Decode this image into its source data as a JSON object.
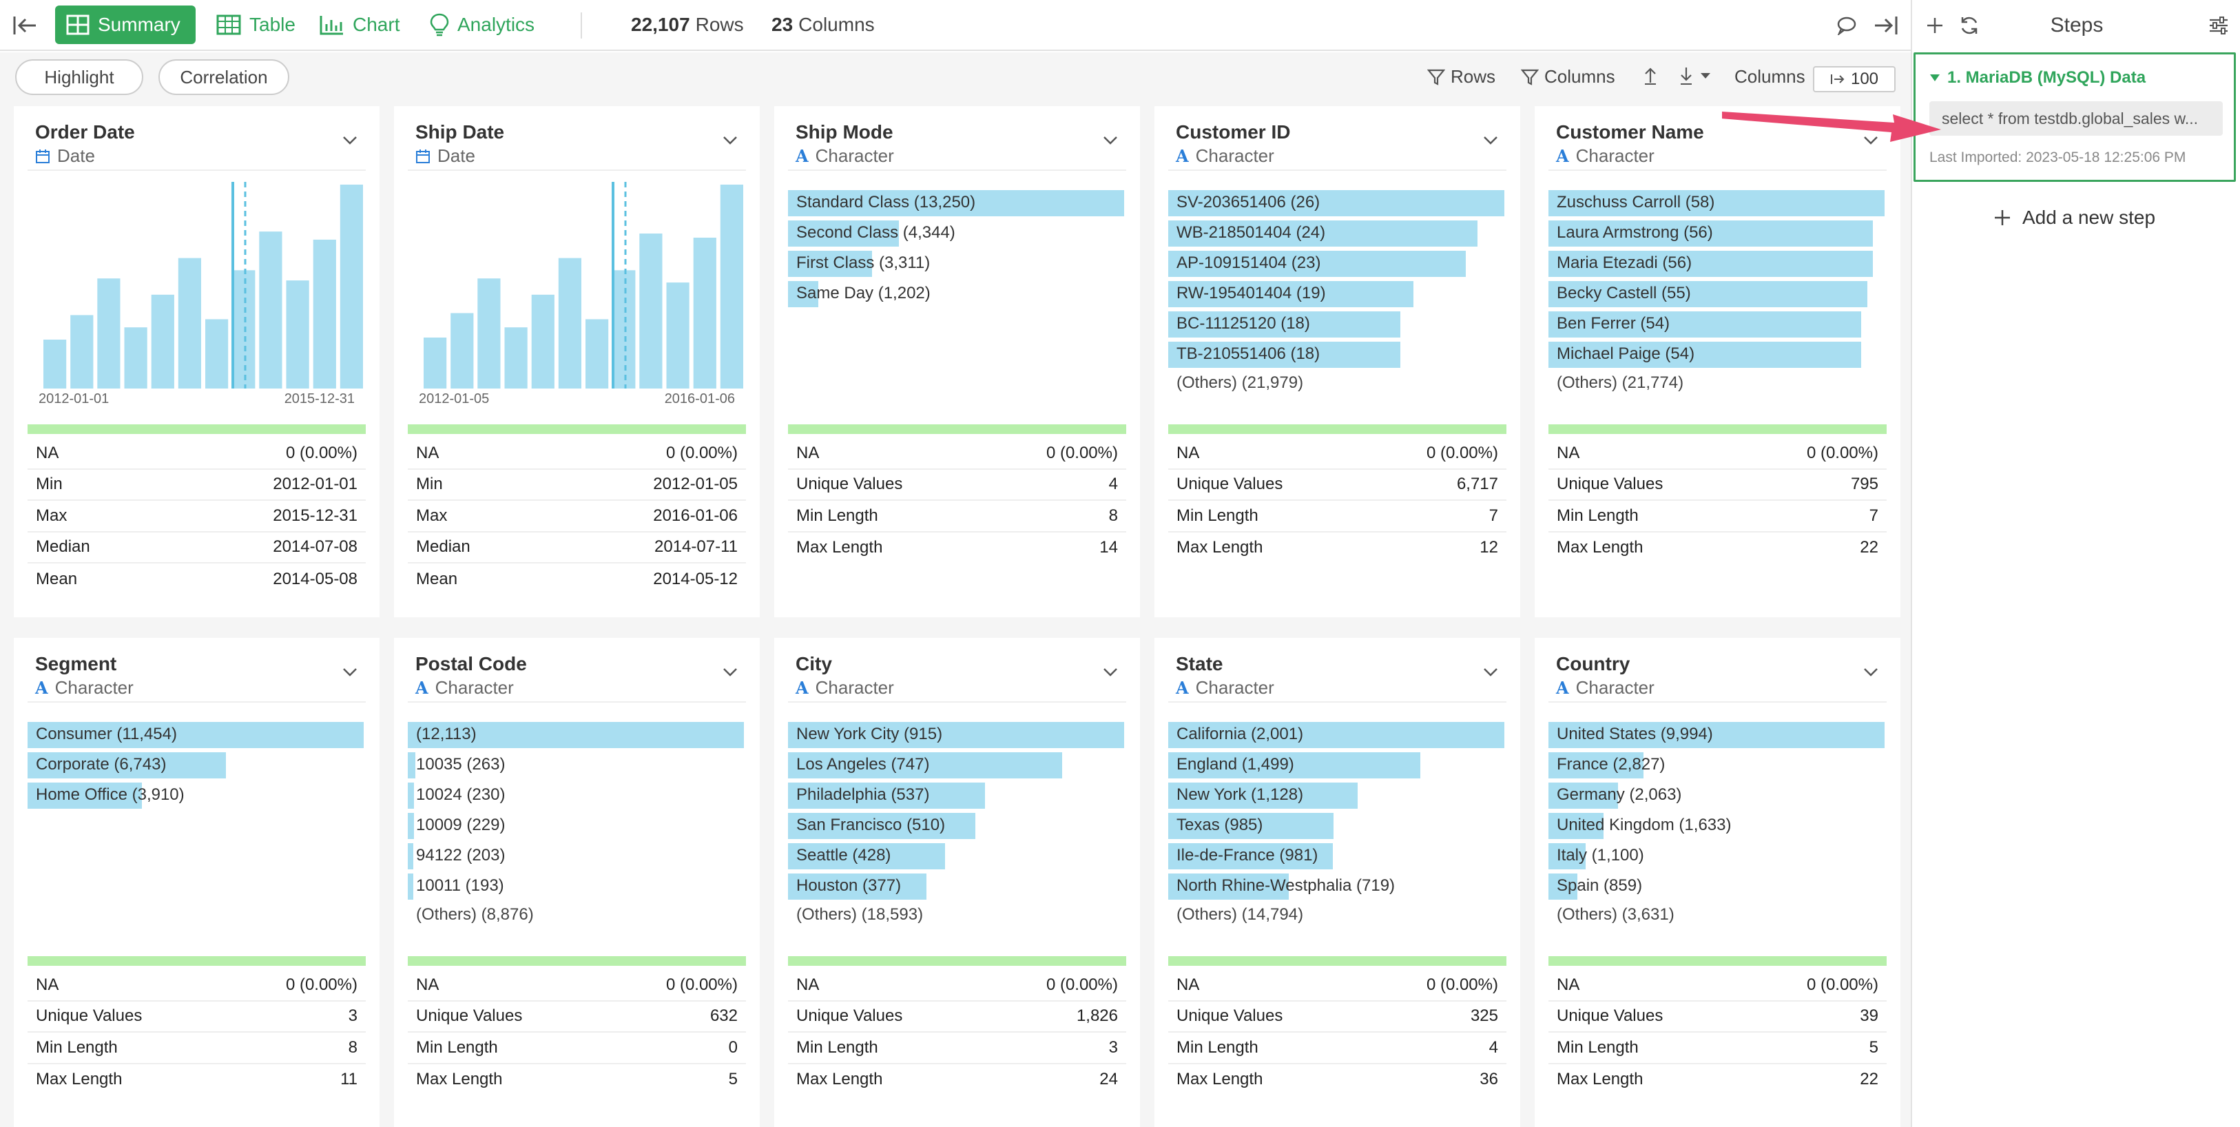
{
  "header": {
    "tabs": [
      {
        "label": "Summary",
        "active": true
      },
      {
        "label": "Table",
        "active": false
      },
      {
        "label": "Chart",
        "active": false
      },
      {
        "label": "Analytics",
        "active": false
      }
    ],
    "rows_count": "22,107",
    "rows_label": "Rows",
    "columns_count": "23",
    "columns_label": "Columns"
  },
  "toolbar": {
    "highlight": "Highlight",
    "correlation": "Correlation",
    "rows_filter": "Rows",
    "columns_filter": "Columns",
    "columns_label": "Columns",
    "columns_value": "100"
  },
  "colors": {
    "accent": "#34a85a",
    "bar": "#a9def1",
    "histogram": "#a9def1",
    "na_bar": "#b7efaa",
    "step_border": "#3aa55d",
    "arrow": "#e8476d"
  },
  "columns": [
    {
      "title": "Order Date",
      "type": "Date",
      "kind": "date",
      "hist": [
        24,
        36,
        54,
        30,
        46,
        64,
        34,
        58,
        77,
        53,
        73,
        100
      ],
      "axis_start": "2012-01-01",
      "axis_end": "2015-12-31",
      "stats": [
        {
          "label": "NA",
          "value": "0 (0.00%)"
        },
        {
          "label": "Min",
          "value": "2012-01-01"
        },
        {
          "label": "Max",
          "value": "2015-12-31"
        },
        {
          "label": "Median",
          "value": "2014-07-08"
        },
        {
          "label": "Mean",
          "value": "2014-05-08"
        }
      ]
    },
    {
      "title": "Ship Date",
      "type": "Date",
      "kind": "date",
      "hist": [
        25,
        37,
        54,
        30,
        46,
        64,
        34,
        58,
        76,
        52,
        74,
        100
      ],
      "axis_start": "2012-01-05",
      "axis_end": "2016-01-06",
      "stats": [
        {
          "label": "NA",
          "value": "0 (0.00%)"
        },
        {
          "label": "Min",
          "value": "2012-01-05"
        },
        {
          "label": "Max",
          "value": "2016-01-06"
        },
        {
          "label": "Median",
          "value": "2014-07-11"
        },
        {
          "label": "Mean",
          "value": "2014-05-12"
        }
      ]
    },
    {
      "title": "Ship Mode",
      "type": "Character",
      "kind": "char",
      "bars": [
        {
          "label": "Standard Class (13,250)",
          "frac": 1.0
        },
        {
          "label": "Second Class (4,344)",
          "frac": 0.33
        },
        {
          "label": "First Class (3,311)",
          "frac": 0.25
        },
        {
          "label": "Same Day (1,202)",
          "frac": 0.09
        }
      ],
      "others": "",
      "stats": [
        {
          "label": "NA",
          "value": "0 (0.00%)"
        },
        {
          "label": "Unique Values",
          "value": "4"
        },
        {
          "label": "Min Length",
          "value": "8"
        },
        {
          "label": "Max Length",
          "value": "14"
        }
      ]
    },
    {
      "title": "Customer ID",
      "type": "Character",
      "kind": "char",
      "bars": [
        {
          "label": "SV-203651406 (26)",
          "frac": 1.0
        },
        {
          "label": "WB-218501404 (24)",
          "frac": 0.92
        },
        {
          "label": "AP-109151404 (23)",
          "frac": 0.885
        },
        {
          "label": "RW-195401404 (19)",
          "frac": 0.73
        },
        {
          "label": "BC-11125120 (18)",
          "frac": 0.69
        },
        {
          "label": "TB-210551406 (18)",
          "frac": 0.69
        }
      ],
      "others": "(Others) (21,979)",
      "stats": [
        {
          "label": "NA",
          "value": "0 (0.00%)"
        },
        {
          "label": "Unique Values",
          "value": "6,717"
        },
        {
          "label": "Min Length",
          "value": "7"
        },
        {
          "label": "Max Length",
          "value": "12"
        }
      ]
    },
    {
      "title": "Customer Name",
      "type": "Character",
      "kind": "char",
      "bars": [
        {
          "label": "Zuschuss Carroll (58)",
          "frac": 1.0
        },
        {
          "label": "Laura Armstrong (56)",
          "frac": 0.965
        },
        {
          "label": "Maria Etezadi (56)",
          "frac": 0.965
        },
        {
          "label": "Becky Castell (55)",
          "frac": 0.948
        },
        {
          "label": "Ben Ferrer (54)",
          "frac": 0.93
        },
        {
          "label": "Michael Paige (54)",
          "frac": 0.93
        }
      ],
      "others": "(Others) (21,774)",
      "stats": [
        {
          "label": "NA",
          "value": "0 (0.00%)"
        },
        {
          "label": "Unique Values",
          "value": "795"
        },
        {
          "label": "Min Length",
          "value": "7"
        },
        {
          "label": "Max Length",
          "value": "22"
        }
      ]
    },
    {
      "title": "Segment",
      "type": "Character",
      "kind": "char",
      "bars": [
        {
          "label": "Consumer (11,454)",
          "frac": 1.0
        },
        {
          "label": "Corporate (6,743)",
          "frac": 0.59
        },
        {
          "label": "Home Office (3,910)",
          "frac": 0.34
        }
      ],
      "others": "",
      "stats": [
        {
          "label": "NA",
          "value": "0 (0.00%)"
        },
        {
          "label": "Unique Values",
          "value": "3"
        },
        {
          "label": "Min Length",
          "value": "8"
        },
        {
          "label": "Max Length",
          "value": "11"
        }
      ]
    },
    {
      "title": "Postal Code",
      "type": "Character",
      "kind": "char",
      "bars": [
        {
          "label": "(12,113)",
          "frac": 1.0
        },
        {
          "label": "10035 (263)",
          "frac": 0.022
        },
        {
          "label": "10024 (230)",
          "frac": 0.019
        },
        {
          "label": "10009 (229)",
          "frac": 0.019
        },
        {
          "label": "94122 (203)",
          "frac": 0.017
        },
        {
          "label": "10011 (193)",
          "frac": 0.016
        }
      ],
      "others": "(Others) (8,876)",
      "stats": [
        {
          "label": "NA",
          "value": "0 (0.00%)"
        },
        {
          "label": "Unique Values",
          "value": "632"
        },
        {
          "label": "Min Length",
          "value": "0"
        },
        {
          "label": "Max Length",
          "value": "5"
        }
      ]
    },
    {
      "title": "City",
      "type": "Character",
      "kind": "char",
      "bars": [
        {
          "label": "New York City (915)",
          "frac": 1.0
        },
        {
          "label": "Los Angeles (747)",
          "frac": 0.816
        },
        {
          "label": "Philadelphia (537)",
          "frac": 0.587
        },
        {
          "label": "San Francisco (510)",
          "frac": 0.557
        },
        {
          "label": "Seattle (428)",
          "frac": 0.468
        },
        {
          "label": "Houston (377)",
          "frac": 0.412
        }
      ],
      "others": "(Others) (18,593)",
      "stats": [
        {
          "label": "NA",
          "value": "0 (0.00%)"
        },
        {
          "label": "Unique Values",
          "value": "1,826"
        },
        {
          "label": "Min Length",
          "value": "3"
        },
        {
          "label": "Max Length",
          "value": "24"
        }
      ]
    },
    {
      "title": "State",
      "type": "Character",
      "kind": "char",
      "bars": [
        {
          "label": "California (2,001)",
          "frac": 1.0
        },
        {
          "label": "England (1,499)",
          "frac": 0.749
        },
        {
          "label": "New York (1,128)",
          "frac": 0.564
        },
        {
          "label": "Texas (985)",
          "frac": 0.492
        },
        {
          "label": "Ile-de-France (981)",
          "frac": 0.49
        },
        {
          "label": "North Rhine-Westphalia (719)",
          "frac": 0.359
        }
      ],
      "others": "(Others) (14,794)",
      "stats": [
        {
          "label": "NA",
          "value": "0 (0.00%)"
        },
        {
          "label": "Unique Values",
          "value": "325"
        },
        {
          "label": "Min Length",
          "value": "4"
        },
        {
          "label": "Max Length",
          "value": "36"
        }
      ]
    },
    {
      "title": "Country",
      "type": "Character",
      "kind": "char",
      "bars": [
        {
          "label": "United States (9,994)",
          "frac": 1.0
        },
        {
          "label": "France (2,827)",
          "frac": 0.283
        },
        {
          "label": "Germany (2,063)",
          "frac": 0.206
        },
        {
          "label": "United Kingdom (1,633)",
          "frac": 0.163
        },
        {
          "label": "Italy (1,100)",
          "frac": 0.11
        },
        {
          "label": "Spain (859)",
          "frac": 0.086
        }
      ],
      "others": "(Others) (3,631)",
      "stats": [
        {
          "label": "NA",
          "value": "0 (0.00%)"
        },
        {
          "label": "Unique Values",
          "value": "39"
        },
        {
          "label": "Min Length",
          "value": "5"
        },
        {
          "label": "Max Length",
          "value": "22"
        }
      ]
    }
  ],
  "steps": {
    "title": "Steps",
    "step_name": "1. MariaDB (MySQL) Data",
    "query": "select * from testdb.global_sales w...",
    "imported": "Last Imported: 2023-05-18 12:25:06 PM",
    "add_step": "Add a new step"
  }
}
